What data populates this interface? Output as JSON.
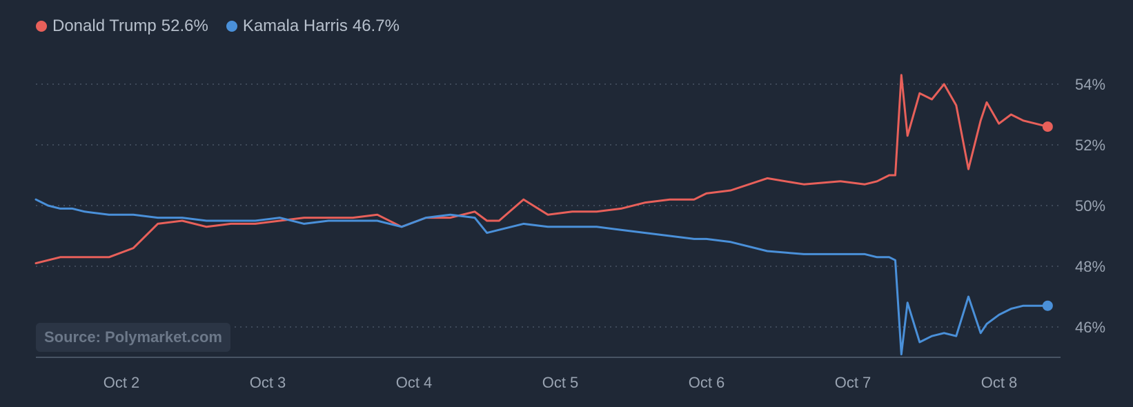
{
  "legend": [
    {
      "name": "Donald Trump",
      "value": "52.6%",
      "color": "#e8605a"
    },
    {
      "name": "Kamala Harris",
      "value": "46.7%",
      "color": "#4a90d9"
    }
  ],
  "source": "Source: Polymarket.com",
  "chart_data": {
    "type": "line",
    "x_labels": [
      "Oct 2",
      "Oct 3",
      "Oct 4",
      "Oct 5",
      "Oct 6",
      "Oct 7",
      "Oct 8"
    ],
    "y_ticks": [
      "54%",
      "52%",
      "50%",
      "48%",
      "46%"
    ],
    "ylim": [
      45,
      54.5
    ],
    "y_axis_side": "right",
    "grid": "horizontal-dotted",
    "x": [
      "Oct 1 12:00",
      "Oct 1 14:00",
      "Oct 1 16:00",
      "Oct 1 18:00",
      "Oct 1 20:00",
      "Oct 2 00:00",
      "Oct 2 04:00",
      "Oct 2 08:00",
      "Oct 2 12:00",
      "Oct 2 16:00",
      "Oct 2 20:00",
      "Oct 3 00:00",
      "Oct 3 04:00",
      "Oct 3 08:00",
      "Oct 3 12:00",
      "Oct 3 16:00",
      "Oct 3 20:00",
      "Oct 4 00:00",
      "Oct 4 04:00",
      "Oct 4 08:00",
      "Oct 4 12:00",
      "Oct 4 14:00",
      "Oct 4 16:00",
      "Oct 4 20:00",
      "Oct 5 00:00",
      "Oct 5 04:00",
      "Oct 5 08:00",
      "Oct 5 12:00",
      "Oct 5 16:00",
      "Oct 5 20:00",
      "Oct 6 00:00",
      "Oct 6 02:00",
      "Oct 6 06:00",
      "Oct 6 12:00",
      "Oct 6 18:00",
      "Oct 7 00:00",
      "Oct 7 04:00",
      "Oct 7 06:00",
      "Oct 7 08:00",
      "Oct 7 09:00",
      "Oct 7 10:00",
      "Oct 7 11:00",
      "Oct 7 13:00",
      "Oct 7 15:00",
      "Oct 7 17:00",
      "Oct 7 19:00",
      "Oct 7 21:00",
      "Oct 7 23:00",
      "Oct 8 00:00",
      "Oct 8 02:00",
      "Oct 8 04:00",
      "Oct 8 06:00",
      "Oct 8 08:00",
      "Oct 8 10:00"
    ],
    "series": [
      {
        "name": "Donald Trump",
        "color": "#e8605a",
        "values": [
          48.1,
          48.2,
          48.3,
          48.3,
          48.3,
          48.3,
          48.6,
          49.4,
          49.5,
          49.3,
          49.4,
          49.4,
          49.5,
          49.6,
          49.6,
          49.6,
          49.7,
          49.3,
          49.6,
          49.6,
          49.8,
          49.5,
          49.5,
          50.2,
          49.7,
          49.8,
          49.8,
          49.9,
          50.1,
          50.2,
          50.2,
          50.4,
          50.5,
          50.9,
          50.7,
          50.8,
          50.7,
          50.8,
          51.0,
          51.0,
          54.3,
          52.3,
          53.7,
          53.5,
          54.0,
          53.3,
          51.2,
          52.8,
          53.4,
          52.7,
          53.0,
          52.8,
          52.7,
          52.6
        ]
      },
      {
        "name": "Kamala Harris",
        "color": "#4a90d9",
        "values": [
          50.2,
          50.0,
          49.9,
          49.9,
          49.8,
          49.7,
          49.7,
          49.6,
          49.6,
          49.5,
          49.5,
          49.5,
          49.6,
          49.4,
          49.5,
          49.5,
          49.5,
          49.3,
          49.6,
          49.7,
          49.6,
          49.1,
          49.2,
          49.4,
          49.3,
          49.3,
          49.3,
          49.2,
          49.1,
          49.0,
          48.9,
          48.9,
          48.8,
          48.5,
          48.4,
          48.4,
          48.4,
          48.3,
          48.3,
          48.2,
          45.1,
          46.8,
          45.5,
          45.7,
          45.8,
          45.7,
          47.0,
          45.8,
          46.1,
          46.4,
          46.6,
          46.7,
          46.7,
          46.7
        ]
      }
    ]
  }
}
